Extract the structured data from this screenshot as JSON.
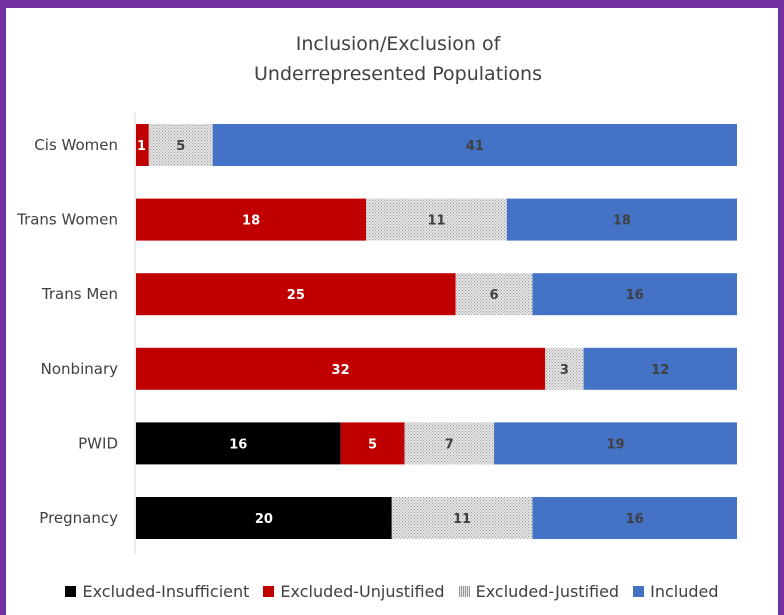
{
  "chart_data": {
    "type": "bar",
    "orientation": "horizontal",
    "stacked": true,
    "title": [
      "Inclusion/Exclusion of",
      "Underrepresented Populations"
    ],
    "categories": [
      "Cis Women",
      "Trans Women",
      "Trans Men",
      "Nonbinary",
      "PWID",
      "Pregnancy"
    ],
    "series": [
      {
        "name": "Excluded-Insufficient",
        "color": "#000000",
        "label_color": "#ffffff",
        "pattern": "solid",
        "values": [
          0,
          0,
          0,
          0,
          16,
          20
        ]
      },
      {
        "name": "Excluded-Unjustified",
        "color": "#c00000",
        "label_color": "#ffffff",
        "pattern": "solid",
        "values": [
          1,
          18,
          25,
          32,
          5,
          0
        ]
      },
      {
        "name": "Excluded-Justified",
        "color": "#bfbfbf",
        "label_color": "#404040",
        "pattern": "dotted-gray",
        "values": [
          5,
          11,
          6,
          3,
          7,
          11
        ]
      },
      {
        "name": "Included",
        "color": "#4472c4",
        "label_color": "#404040",
        "pattern": "solid",
        "values": [
          41,
          18,
          16,
          12,
          19,
          16
        ]
      }
    ],
    "xlim": [
      0,
      47
    ],
    "grid": false,
    "legend_position": "bottom"
  }
}
